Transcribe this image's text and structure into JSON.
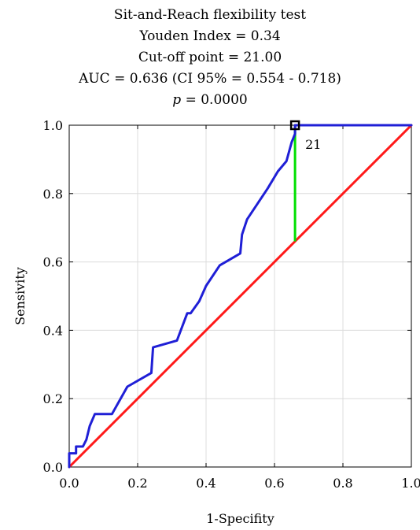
{
  "chart_data": {
    "type": "line",
    "title_lines": [
      "Sit-and-Reach flexibility test",
      "Youden Index = 0.34",
      "Cut-off point = 21.00",
      "AUC = 0.636 (CI 95% = 0.554 - 0.718)"
    ],
    "p_value": {
      "symbol": "p",
      "text": " = 0.0000"
    },
    "xlabel": "1-Specifity",
    "ylabel": "Sensivity",
    "xlim": [
      0,
      1
    ],
    "ylim": [
      0,
      1
    ],
    "x_ticks": [
      "0.0",
      "0.2",
      "0.4",
      "0.6",
      "0.8",
      "1.0"
    ],
    "y_ticks": [
      "0.0",
      "0.2",
      "0.4",
      "0.6",
      "0.8",
      "1.0"
    ],
    "grid": true,
    "series": [
      {
        "color": "#1f1fd6",
        "x": [
          0,
          0,
          0.02,
          0.02,
          0.04,
          0.05,
          0.06,
          0.075,
          0.125,
          0.17,
          0.24,
          0.245,
          0.315,
          0.345,
          0.355,
          0.38,
          0.4,
          0.44,
          0.5,
          0.505,
          0.52,
          0.55,
          0.58,
          0.61,
          0.635,
          0.65,
          0.66,
          0.66,
          1.0
        ],
        "y": [
          0,
          0.04,
          0.04,
          0.06,
          0.06,
          0.08,
          0.12,
          0.155,
          0.155,
          0.235,
          0.275,
          0.35,
          0.37,
          0.45,
          0.45,
          0.485,
          0.53,
          0.59,
          0.625,
          0.68,
          0.725,
          0.77,
          0.815,
          0.865,
          0.895,
          0.95,
          0.975,
          1.0,
          1.0
        ]
      },
      {
        "color": "#ff1a1a",
        "x": [
          0,
          1
        ],
        "y": [
          0,
          1
        ]
      }
    ],
    "youden_line": {
      "color": "#00e000",
      "x": 0.66,
      "y_from": 0.66,
      "y_to": 1.0
    },
    "cutoff_marker": {
      "x": 0.66,
      "y": 1.0,
      "label": "21"
    }
  }
}
